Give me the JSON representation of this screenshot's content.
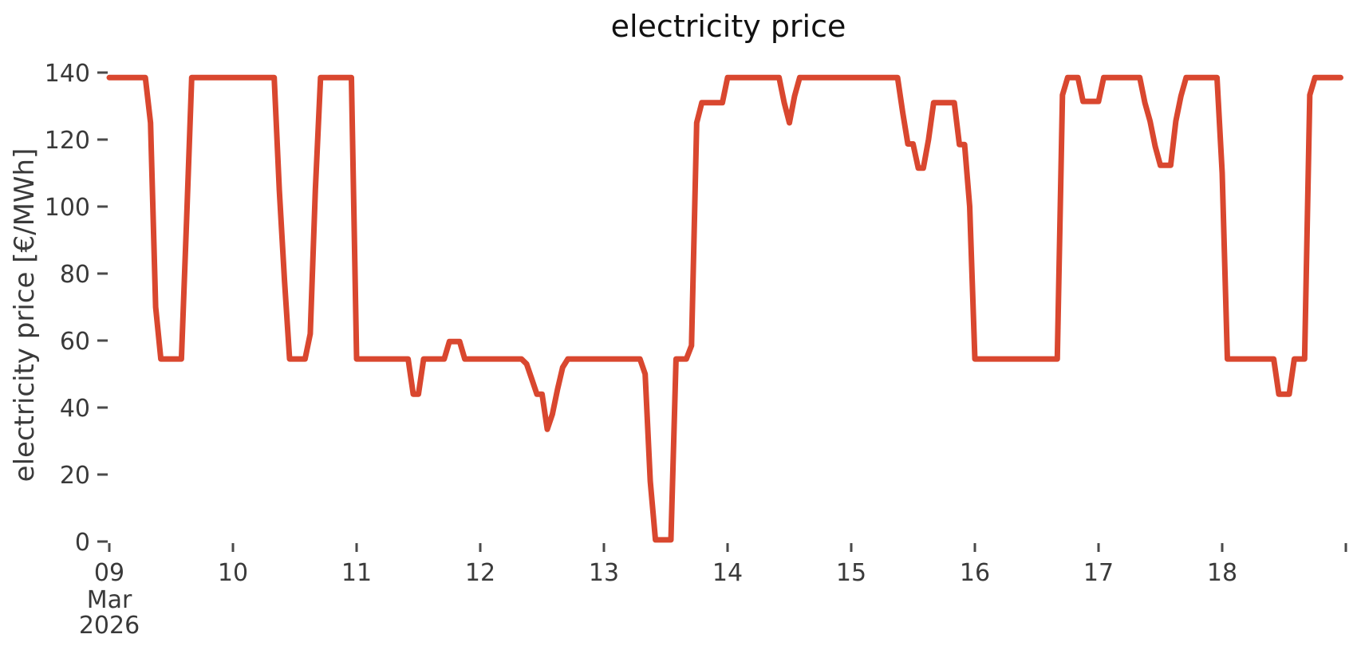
{
  "title": "electricity price",
  "colors": {
    "line": "#d9472f",
    "text": "#3a3a3a",
    "tick": "#4a4a4a",
    "background": "#ffffff"
  },
  "y_axis": {
    "label": "electricity price [€/MWh]",
    "ticks": [
      0,
      20,
      40,
      60,
      80,
      100,
      120,
      140
    ]
  },
  "x_axis": {
    "ticks": [
      {
        "day": 0,
        "label": "09",
        "sublabels": [
          "Mar",
          "2026"
        ]
      },
      {
        "day": 1,
        "label": "10",
        "sublabels": []
      },
      {
        "day": 2,
        "label": "11",
        "sublabels": []
      },
      {
        "day": 3,
        "label": "12",
        "sublabels": []
      },
      {
        "day": 4,
        "label": "13",
        "sublabels": []
      },
      {
        "day": 5,
        "label": "14",
        "sublabels": []
      },
      {
        "day": 6,
        "label": "15",
        "sublabels": []
      },
      {
        "day": 7,
        "label": "16",
        "sublabels": []
      },
      {
        "day": 8,
        "label": "17",
        "sublabels": []
      },
      {
        "day": 9,
        "label": "18",
        "sublabels": []
      },
      {
        "day": 10,
        "label": "",
        "sublabels": []
      }
    ]
  },
  "chart_data": {
    "type": "line",
    "title": "electricity price",
    "xlabel": "",
    "ylabel": "electricity price [€/MWh]",
    "unit": "€/MWh",
    "x_start": "2026-03-09 00:00",
    "x_step_hours": 1,
    "ylim": [
      0,
      140
    ],
    "grid": false,
    "legend": "none",
    "x_tick_labels": [
      "09 Mar 2026",
      "10",
      "11",
      "12",
      "13",
      "14",
      "15",
      "16",
      "17",
      "18"
    ],
    "series": [
      {
        "name": "electricity price",
        "values": [
          138.5,
          138.5,
          138.5,
          138.5,
          138.5,
          138.5,
          138.5,
          138.5,
          125,
          70,
          54.5,
          54.5,
          54.5,
          54.5,
          54.5,
          96,
          138.5,
          138.5,
          138.5,
          138.5,
          138.5,
          138.5,
          138.5,
          138.5,
          138.5,
          138.5,
          138.5,
          138.5,
          138.5,
          138.5,
          138.5,
          138.5,
          138.5,
          105,
          78,
          54.5,
          54.5,
          54.5,
          54.5,
          62,
          105,
          138.5,
          138.5,
          138.5,
          138.5,
          138.5,
          138.5,
          138.5,
          54.5,
          54.5,
          54.5,
          54.5,
          54.5,
          54.5,
          54.5,
          54.5,
          54.5,
          54.5,
          54.5,
          44,
          44,
          54.5,
          54.5,
          54.5,
          54.5,
          54.5,
          59.7,
          59.7,
          59.7,
          54.5,
          54.5,
          54.5,
          54.5,
          54.5,
          54.5,
          54.5,
          54.5,
          54.5,
          54.5,
          54.5,
          54.5,
          53,
          48.5,
          44,
          44,
          33.5,
          38,
          45.5,
          52,
          54.5,
          54.5,
          54.5,
          54.5,
          54.5,
          54.5,
          54.5,
          54.5,
          54.5,
          54.5,
          54.5,
          54.5,
          54.5,
          54.5,
          54.5,
          50,
          18,
          0.5,
          0.5,
          0.5,
          0.5,
          54.5,
          54.5,
          54.5,
          58.5,
          125,
          131,
          131,
          131,
          131,
          131,
          138.5,
          138.5,
          138.5,
          138.5,
          138.5,
          138.5,
          138.5,
          138.5,
          138.5,
          138.5,
          138.5,
          131,
          125,
          133,
          138.5,
          138.5,
          138.5,
          138.5,
          138.5,
          138.5,
          138.5,
          138.5,
          138.5,
          138.5,
          138.5,
          138.5,
          138.5,
          138.5,
          138.5,
          138.5,
          138.5,
          138.5,
          138.5,
          138.5,
          128,
          118.7,
          118.7,
          111.5,
          111.5,
          120,
          131,
          131,
          131,
          131,
          131,
          118.5,
          118.5,
          100,
          54.5,
          54.5,
          54.5,
          54.5,
          54.5,
          54.5,
          54.5,
          54.5,
          54.5,
          54.5,
          54.5,
          54.5,
          54.5,
          54.5,
          54.5,
          54.5,
          54.5,
          133.3,
          138.5,
          138.5,
          138.5,
          131.4,
          131.4,
          131.4,
          131.4,
          138.5,
          138.5,
          138.5,
          138.5,
          138.5,
          138.5,
          138.5,
          138.5,
          131,
          125.5,
          118,
          112.3,
          112.3,
          112.3,
          125.5,
          133,
          138.5,
          138.5,
          138.5,
          138.5,
          138.5,
          138.5,
          138.5,
          110,
          54.5,
          54.5,
          54.5,
          54.5,
          54.5,
          54.5,
          54.5,
          54.5,
          54.5,
          54.5,
          44,
          44,
          44,
          54.5,
          54.5,
          54.5,
          133.3,
          138.5,
          138.5,
          138.5,
          138.5,
          138.5,
          138.5
        ]
      }
    ]
  }
}
